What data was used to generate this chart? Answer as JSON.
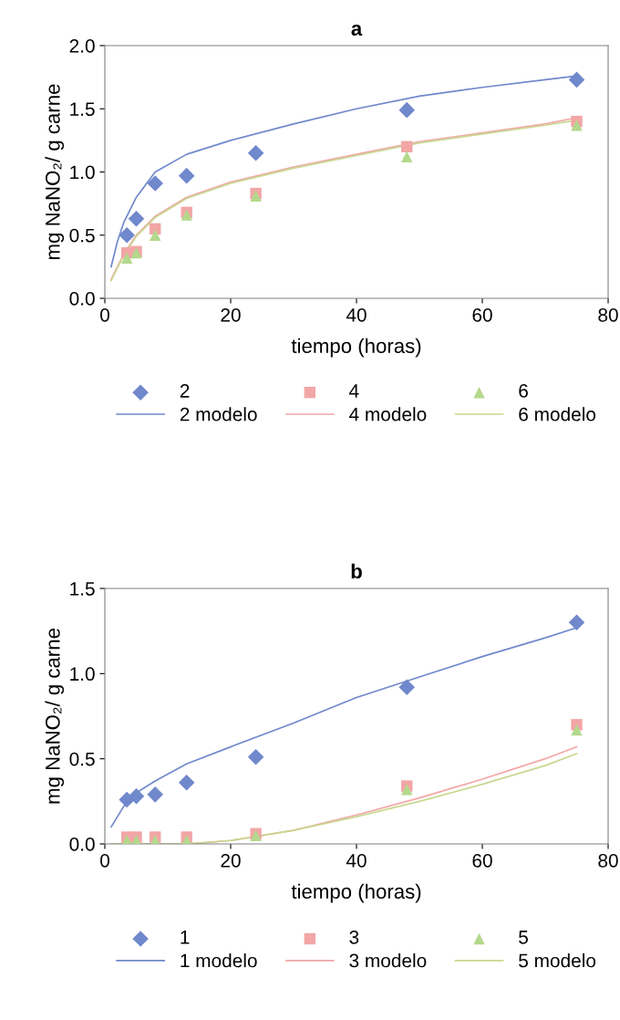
{
  "chart_data": [
    {
      "type": "scatter",
      "title": "a",
      "xlabel": "tiempo (horas)",
      "ylabel": "mg NaNO₂/ g carne",
      "xlim": [
        0,
        80
      ],
      "xticks": [
        0,
        20,
        40,
        60,
        80
      ],
      "ylim": [
        0,
        2.0
      ],
      "yticks": [
        {
          "value": 0,
          "label": "0.0"
        },
        {
          "value": 0.5,
          "label": "0.5"
        },
        {
          "value": 1.0,
          "label": "1.0"
        },
        {
          "value": 1.5,
          "label": "1.5"
        },
        {
          "value": 2.0,
          "label": "2.0"
        }
      ],
      "grid": false,
      "legend": "bottom",
      "series": [
        {
          "name": "2",
          "marker": "diamond",
          "color": "#7088cc",
          "x": [
            3.5,
            5,
            8,
            13,
            24,
            48,
            75
          ],
          "values": [
            0.5,
            0.63,
            0.91,
            0.97,
            1.15,
            1.49,
            1.73
          ]
        },
        {
          "name": "4",
          "marker": "square",
          "color": "#f2a6a6",
          "x": [
            3.5,
            5,
            8,
            13,
            24,
            48,
            75
          ],
          "values": [
            0.36,
            0.37,
            0.55,
            0.68,
            0.83,
            1.2,
            1.4
          ]
        },
        {
          "name": "6",
          "marker": "triangle",
          "color": "#b4d88c",
          "x": [
            3.5,
            5,
            8,
            13,
            24,
            48,
            75
          ],
          "values": [
            0.32,
            0.36,
            0.5,
            0.66,
            0.81,
            1.12,
            1.37
          ]
        },
        {
          "name": "2 modelo",
          "type": "line",
          "color": "#7088cc",
          "x": [
            1,
            2,
            3,
            5,
            8,
            13,
            20,
            30,
            40,
            50,
            60,
            70,
            75
          ],
          "values": [
            0.25,
            0.45,
            0.6,
            0.8,
            1.0,
            1.14,
            1.25,
            1.38,
            1.5,
            1.6,
            1.67,
            1.73,
            1.76
          ]
        },
        {
          "name": "4 modelo",
          "type": "line",
          "color": "#f2a6a6",
          "x": [
            1,
            3,
            5,
            8,
            13,
            20,
            30,
            40,
            50,
            60,
            70,
            75
          ],
          "values": [
            0.15,
            0.35,
            0.5,
            0.65,
            0.8,
            0.92,
            1.04,
            1.14,
            1.24,
            1.31,
            1.38,
            1.43
          ]
        },
        {
          "name": "6 modelo",
          "type": "line",
          "color": "#c8d890",
          "x": [
            1,
            3,
            5,
            8,
            13,
            20,
            30,
            40,
            50,
            60,
            70,
            75
          ],
          "values": [
            0.14,
            0.34,
            0.49,
            0.64,
            0.79,
            0.91,
            1.03,
            1.13,
            1.23,
            1.3,
            1.37,
            1.41
          ]
        }
      ]
    },
    {
      "type": "scatter",
      "title": "b",
      "xlabel": "tiempo (horas)",
      "ylabel": "mg NaNO₂/ g carne",
      "xlim": [
        0,
        80
      ],
      "xticks": [
        0,
        20,
        40,
        60,
        80
      ],
      "ylim": [
        0,
        1.5
      ],
      "yticks": [
        {
          "value": 0,
          "label": "0.0"
        },
        {
          "value": 0.5,
          "label": "0.5"
        },
        {
          "value": 1.0,
          "label": "1.0"
        },
        {
          "value": 1.5,
          "label": "1.5"
        }
      ],
      "grid": false,
      "legend": "bottom",
      "series": [
        {
          "name": "1",
          "marker": "diamond",
          "color": "#7088cc",
          "x": [
            3.5,
            5,
            8,
            13,
            24,
            48,
            75
          ],
          "values": [
            0.26,
            0.28,
            0.29,
            0.36,
            0.51,
            0.92,
            1.3
          ]
        },
        {
          "name": "3",
          "marker": "square",
          "color": "#f2a6a6",
          "x": [
            3.5,
            5,
            8,
            13,
            24,
            48,
            75
          ],
          "values": [
            0.04,
            0.04,
            0.04,
            0.04,
            0.06,
            0.34,
            0.7
          ]
        },
        {
          "name": "5",
          "marker": "triangle",
          "color": "#b4d88c",
          "x": [
            3.5,
            5,
            8,
            13,
            24,
            48,
            75
          ],
          "values": [
            0.02,
            0.02,
            0.02,
            0.02,
            0.05,
            0.32,
            0.67
          ]
        },
        {
          "name": "1 modelo",
          "type": "line",
          "color": "#7088cc",
          "x": [
            1,
            3,
            5,
            8,
            13,
            20,
            30,
            40,
            50,
            60,
            70,
            75
          ],
          "values": [
            0.1,
            0.22,
            0.3,
            0.37,
            0.47,
            0.57,
            0.71,
            0.86,
            0.98,
            1.1,
            1.21,
            1.27
          ]
        },
        {
          "name": "3 modelo",
          "type": "line",
          "color": "#f2a6a6",
          "x": [
            1,
            13,
            15,
            20,
            30,
            40,
            50,
            60,
            70,
            75
          ],
          "values": [
            0,
            0,
            0.005,
            0.02,
            0.08,
            0.17,
            0.27,
            0.38,
            0.5,
            0.57
          ]
        },
        {
          "name": "5 modelo",
          "type": "line",
          "color": "#c8d890",
          "x": [
            1,
            13,
            15,
            20,
            30,
            40,
            50,
            60,
            70,
            75
          ],
          "values": [
            0,
            0,
            0.005,
            0.02,
            0.08,
            0.16,
            0.25,
            0.35,
            0.46,
            0.53
          ]
        }
      ]
    }
  ]
}
